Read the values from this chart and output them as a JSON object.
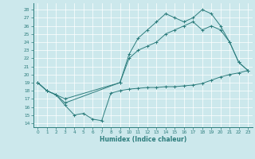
{
  "xlabel": "Humidex (Indice chaleur)",
  "bg_color": "#cce8ec",
  "line_color": "#2d7d7d",
  "grid_color": "#ffffff",
  "xlim": [
    -0.5,
    23.5
  ],
  "ylim": [
    13.5,
    28.8
  ],
  "yticks": [
    14,
    15,
    16,
    17,
    18,
    19,
    20,
    21,
    22,
    23,
    24,
    25,
    26,
    27,
    28
  ],
  "xticks": [
    0,
    1,
    2,
    3,
    4,
    5,
    6,
    7,
    8,
    9,
    10,
    11,
    12,
    13,
    14,
    15,
    16,
    17,
    18,
    19,
    20,
    21,
    22,
    23
  ],
  "line1_x": [
    0,
    1,
    2,
    3,
    4,
    5,
    6,
    7,
    8,
    9,
    10,
    11,
    12,
    13,
    14,
    15,
    16,
    17,
    18,
    19,
    20,
    21,
    22,
    23
  ],
  "line1_y": [
    19.0,
    18.0,
    17.5,
    16.2,
    15.0,
    15.2,
    14.5,
    14.3,
    17.7,
    18.0,
    18.2,
    18.3,
    18.4,
    18.4,
    18.5,
    18.5,
    18.6,
    18.7,
    18.9,
    19.3,
    19.7,
    20.0,
    20.2,
    20.5
  ],
  "line2_x": [
    0,
    1,
    2,
    3,
    9,
    10,
    11,
    12,
    13,
    14,
    15,
    16,
    17,
    18,
    19,
    20,
    21,
    22,
    23
  ],
  "line2_y": [
    19.0,
    18.0,
    17.5,
    16.5,
    19.0,
    22.0,
    23.0,
    23.5,
    24.0,
    25.0,
    25.5,
    26.0,
    26.5,
    25.5,
    26.0,
    25.5,
    24.0,
    21.5,
    20.5
  ],
  "line3_x": [
    0,
    1,
    3,
    9,
    10,
    11,
    12,
    13,
    14,
    15,
    16,
    17,
    18,
    19,
    20,
    21,
    22,
    23
  ],
  "line3_y": [
    19.0,
    18.0,
    17.0,
    19.0,
    22.5,
    24.5,
    25.5,
    26.5,
    27.5,
    27.0,
    26.5,
    27.0,
    28.0,
    27.5,
    26.0,
    24.0,
    21.5,
    20.5
  ]
}
